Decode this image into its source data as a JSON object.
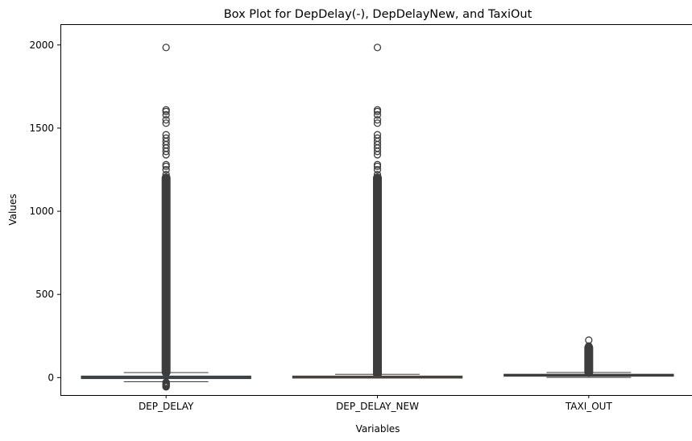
{
  "chart_data": {
    "type": "box",
    "title": "Box Plot for DepDelay(-), DepDelayNew, and TaxiOut",
    "xlabel": "Variables",
    "ylabel": "Values",
    "ylim": [
      -105,
      2125
    ],
    "yticks": [
      0,
      500,
      1000,
      1500,
      2000
    ],
    "grid": false,
    "legend": "none",
    "categories": [
      "DEP_DELAY",
      "DEP_DELAY_NEW",
      "TAXI_OUT"
    ],
    "series": [
      {
        "category": "DEP_DELAY",
        "color": "#1f77b4",
        "q1": -5,
        "median": -1,
        "q3": 8,
        "whisker_low": -25,
        "whisker_high": 30,
        "outliers_high": [
          1985,
          1610,
          1600,
          1580,
          1550,
          1530,
          1460,
          1440,
          1420,
          1400,
          1380,
          1360,
          1340,
          1280,
          1270,
          1250,
          1220,
          1200
        ],
        "outlier_dense_range": [
          32,
          1200
        ],
        "outliers_low": [
          -28,
          -32,
          -36,
          -40,
          -44,
          -48,
          -52,
          -56
        ]
      },
      {
        "category": "DEP_DELAY_NEW",
        "color": "#ff7f0e",
        "q1": 0,
        "median": 0,
        "q3": 8,
        "whisker_low": 0,
        "whisker_high": 20,
        "outliers_high": [
          1985,
          1610,
          1600,
          1580,
          1550,
          1530,
          1460,
          1440,
          1420,
          1400,
          1380,
          1360,
          1340,
          1280,
          1270,
          1250,
          1220,
          1200
        ],
        "outlier_dense_range": [
          22,
          1200
        ],
        "outliers_low": []
      },
      {
        "category": "TAXI_OUT",
        "color": "#2ca02c",
        "q1": 11,
        "median": 14,
        "q3": 19,
        "whisker_low": 1,
        "whisker_high": 31,
        "outliers_high": [
          225,
          190,
          185,
          180
        ],
        "outlier_dense_range": [
          33,
          180
        ],
        "outliers_low": []
      }
    ]
  }
}
